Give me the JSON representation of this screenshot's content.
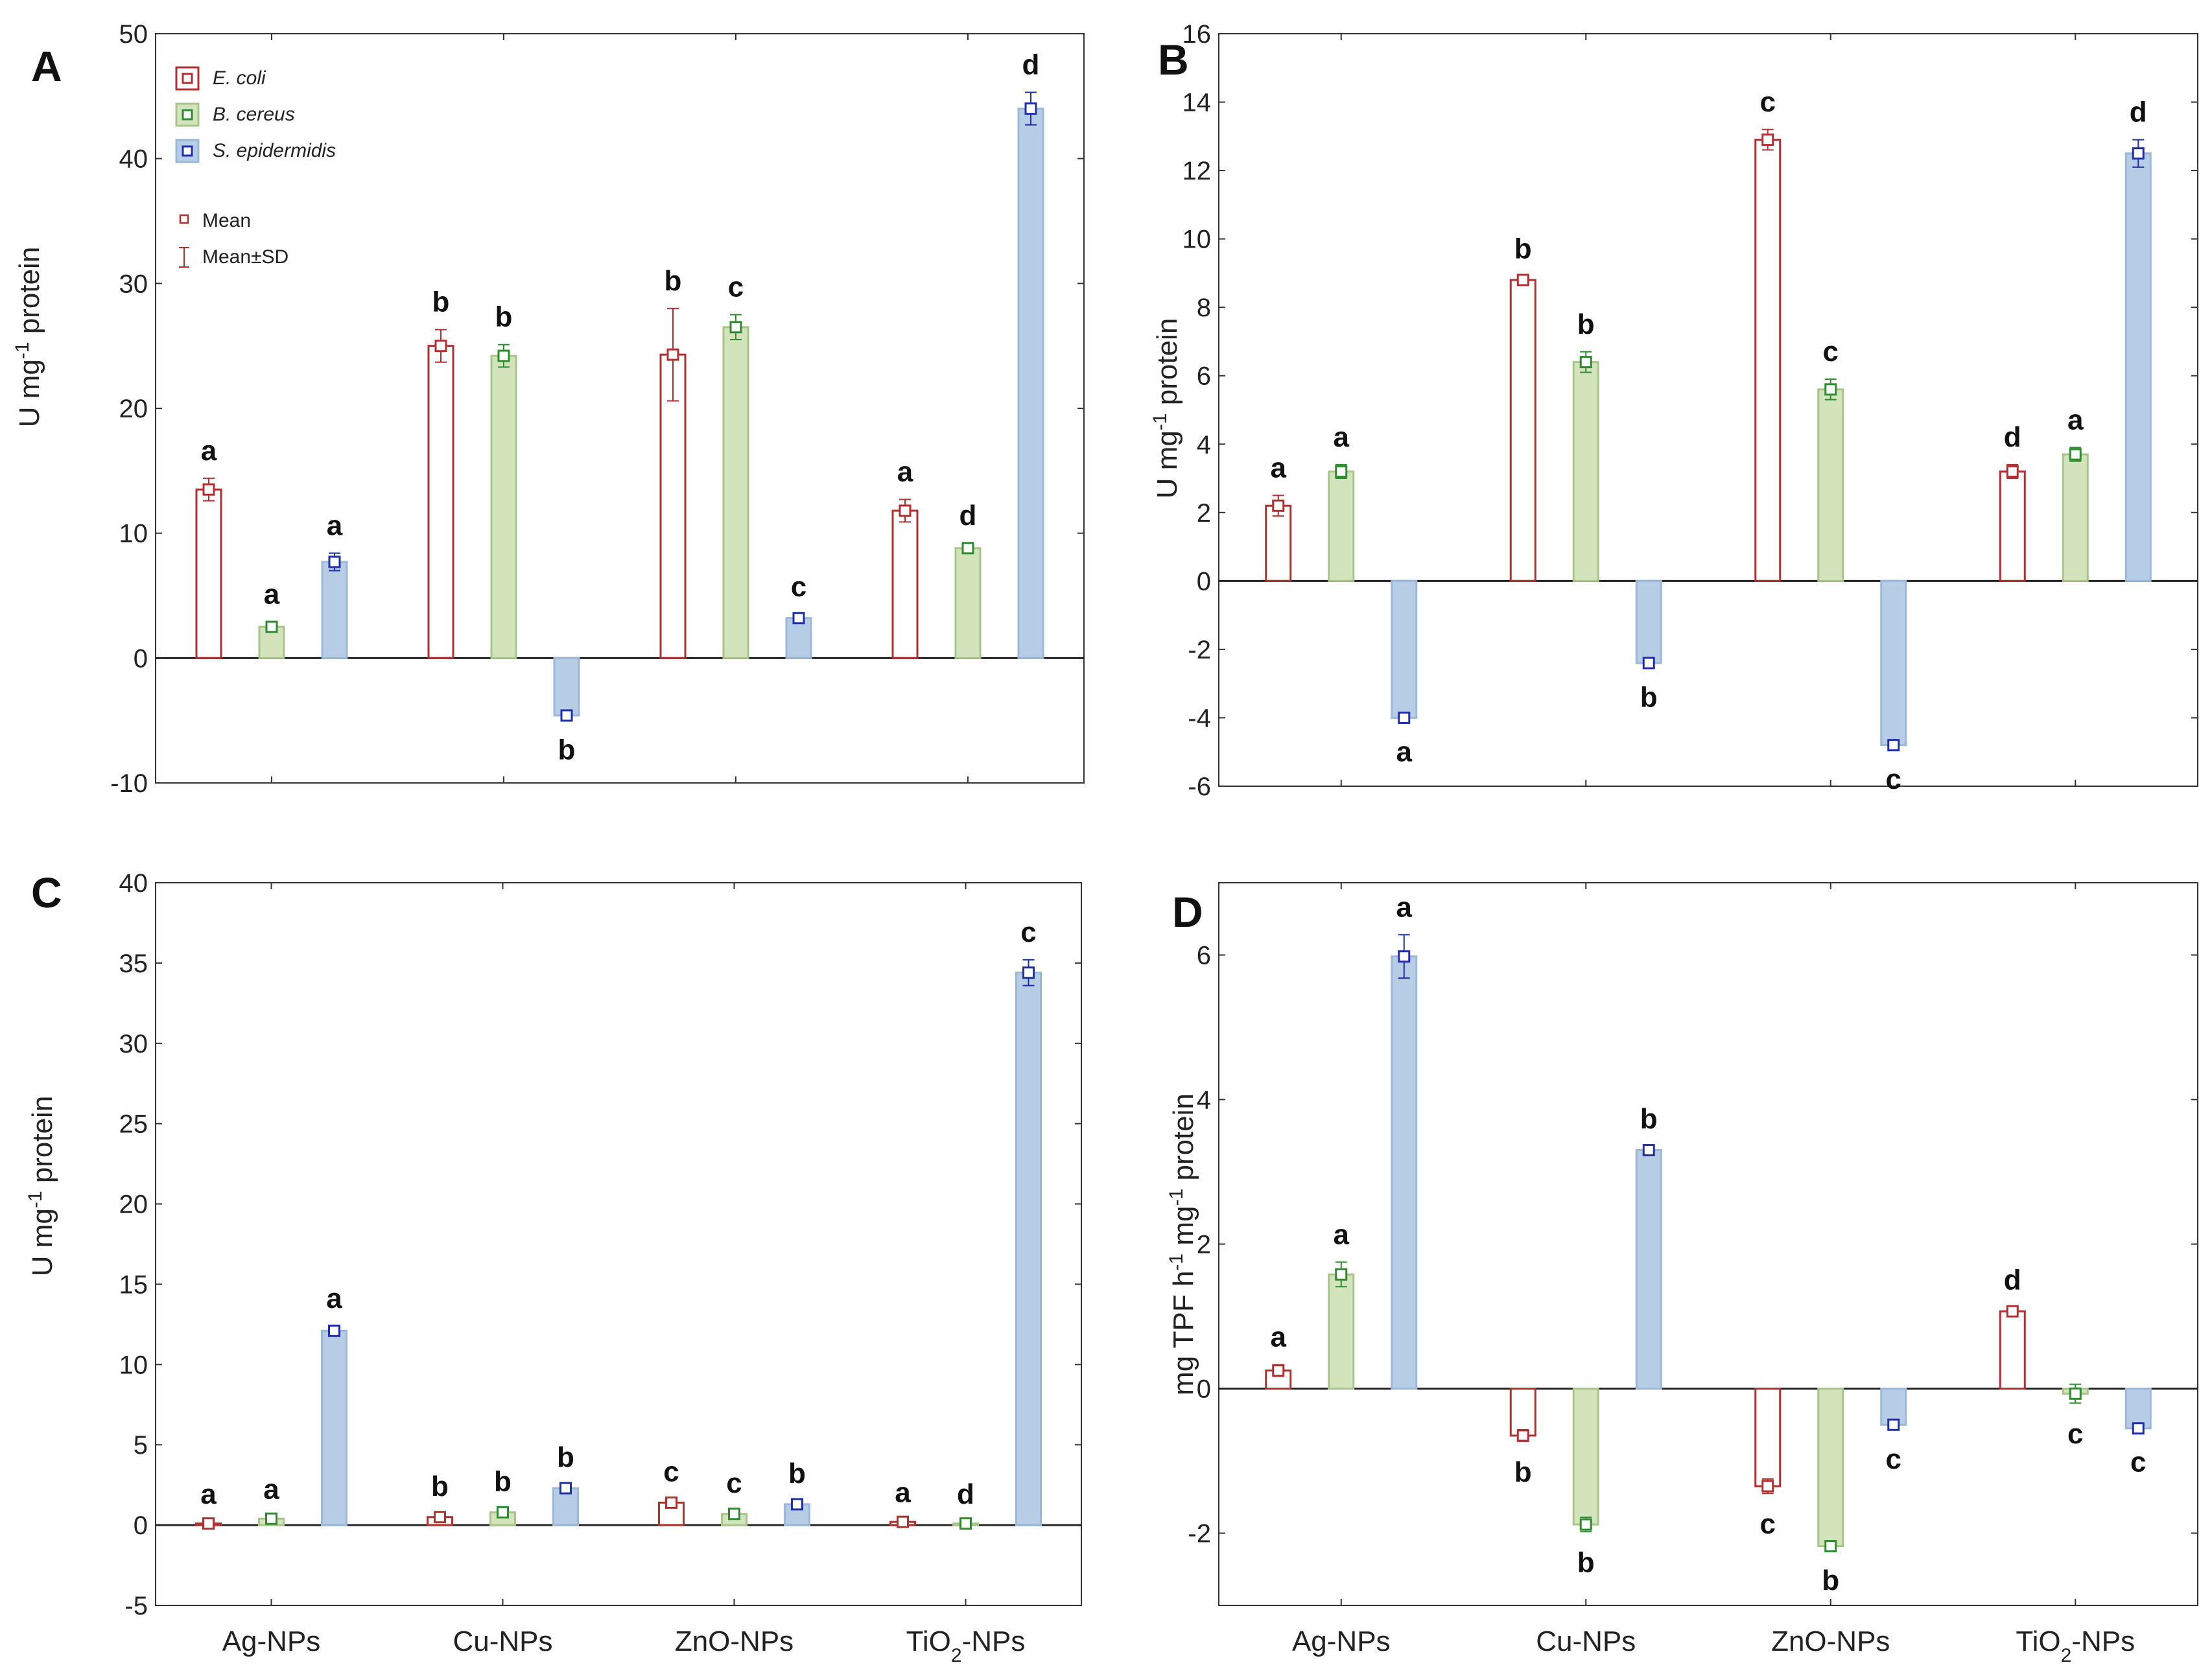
{
  "chart_data": [
    {
      "panel": "A",
      "type": "bar",
      "ylabel": "U mg-1 protein",
      "ylabel_sup": "-1",
      "ylim": [
        -10,
        50
      ],
      "yticks": [
        "-10",
        "0",
        "10",
        "20",
        "30",
        "40",
        "50"
      ],
      "categories": [
        "Ag-NPs",
        "Cu-NPs",
        "ZnO-NPs",
        "TiO2-NPs"
      ],
      "series": [
        {
          "name": "E. coli",
          "values": [
            13.5,
            25.0,
            24.3,
            11.8
          ],
          "sd": [
            0.9,
            1.3,
            3.7,
            0.9
          ],
          "letters": [
            "a",
            "b",
            "b",
            "a"
          ]
        },
        {
          "name": "B. cereus",
          "values": [
            2.5,
            24.2,
            26.5,
            8.8
          ],
          "sd": [
            0.4,
            0.9,
            1.0,
            0.4
          ],
          "letters": [
            "a",
            "b",
            "c",
            "d"
          ]
        },
        {
          "name": "S. epidermidis",
          "values": [
            7.7,
            -4.6,
            3.2,
            44.0
          ],
          "sd": [
            0.7,
            0.3,
            0.3,
            1.3
          ],
          "letters": [
            "a",
            "b",
            "c",
            "d"
          ]
        }
      ],
      "legend": {
        "items": [
          "E. coli",
          "B. cereus",
          "S. epidermidis"
        ],
        "mean_label": "Mean",
        "sd_label": "Mean±SD"
      }
    },
    {
      "panel": "B",
      "type": "bar",
      "ylabel": "U mg-1 protein",
      "ylabel_sup": "-1",
      "ylim": [
        -6,
        16
      ],
      "yticks": [
        "-6",
        "-4",
        "-2",
        "0",
        "2",
        "4",
        "6",
        "8",
        "10",
        "12",
        "14",
        "16"
      ],
      "categories": [
        "Ag-NPs",
        "Cu-NPs",
        "ZnO-NPs",
        "TiO2-NPs"
      ],
      "series": [
        {
          "name": "E. coli",
          "values": [
            2.2,
            8.8,
            12.9,
            3.2
          ],
          "sd": [
            0.3,
            0.1,
            0.3,
            0.2
          ],
          "letters": [
            "a",
            "b",
            "c",
            "d"
          ]
        },
        {
          "name": "B. cereus",
          "values": [
            3.2,
            6.4,
            5.6,
            3.7
          ],
          "sd": [
            0.2,
            0.3,
            0.3,
            0.2
          ],
          "letters": [
            "a",
            "b",
            "c",
            "a"
          ]
        },
        {
          "name": "S. epidermidis",
          "values": [
            -4.0,
            -2.4,
            -4.8,
            12.5
          ],
          "sd": [
            0.1,
            0.1,
            0.1,
            0.4
          ],
          "letters": [
            "a",
            "b",
            "c",
            "d"
          ]
        }
      ]
    },
    {
      "panel": "C",
      "type": "bar",
      "ylabel": "U mg-1 protein",
      "ylabel_sup": "-1",
      "ylim": [
        -5,
        40
      ],
      "yticks": [
        "-5",
        "0",
        "5",
        "10",
        "15",
        "20",
        "25",
        "30",
        "35",
        "40"
      ],
      "categories": [
        "Ag-NPs",
        "Cu-NPs",
        "ZnO-NPs",
        "TiO2-NPs"
      ],
      "series": [
        {
          "name": "E. coli",
          "values": [
            0.1,
            0.5,
            1.4,
            0.2
          ],
          "sd": [
            0.1,
            0.2,
            0.2,
            0.1
          ],
          "letters": [
            "a",
            "b",
            "c",
            "a"
          ]
        },
        {
          "name": "B. cereus",
          "values": [
            0.4,
            0.8,
            0.7,
            0.1
          ],
          "sd": [
            0.1,
            0.2,
            0.2,
            0.1
          ],
          "letters": [
            "a",
            "b",
            "c",
            "d"
          ]
        },
        {
          "name": "S. epidermidis",
          "values": [
            12.1,
            2.3,
            1.3,
            34.4
          ],
          "sd": [
            0.3,
            0.2,
            0.2,
            0.8
          ],
          "letters": [
            "a",
            "b",
            "b",
            "c"
          ]
        }
      ]
    },
    {
      "panel": "D",
      "type": "bar",
      "ylabel": "mg TPF h-1 mg-1 protein",
      "ylim": [
        -3,
        7
      ],
      "yticks": [
        "-2",
        "0",
        "2",
        "4",
        "6"
      ],
      "categories": [
        "Ag-NPs",
        "Cu-NPs",
        "ZnO-NPs",
        "TiO2-NPs"
      ],
      "series": [
        {
          "name": "E. coli",
          "values": [
            0.25,
            -0.65,
            -1.35,
            1.07
          ],
          "sd": [
            0.08,
            0.08,
            0.1,
            0.05
          ],
          "letters": [
            "a",
            "b",
            "c",
            "d"
          ]
        },
        {
          "name": "B. cereus",
          "values": [
            1.58,
            -1.88,
            -2.18,
            -0.07
          ],
          "sd": [
            0.17,
            0.1,
            0.05,
            0.13
          ],
          "letters": [
            "a",
            "b",
            "b",
            "c"
          ]
        },
        {
          "name": "S. epidermidis",
          "values": [
            5.98,
            3.3,
            -0.5,
            -0.55
          ],
          "sd": [
            0.3,
            0.05,
            0.05,
            0.04
          ],
          "letters": [
            "a",
            "b",
            "c",
            "c"
          ]
        }
      ]
    }
  ],
  "colors": {
    "ecoli_edge": "#b03030",
    "bcereus_fill": "#d3e3bc",
    "bcereus_edge": "#a9c48a",
    "bcereus_marker": "#2e8b2e",
    "sepi_fill": "#b7cde6",
    "sepi_edge": "#9bb8d8",
    "sepi_marker": "#1f2fa8"
  }
}
